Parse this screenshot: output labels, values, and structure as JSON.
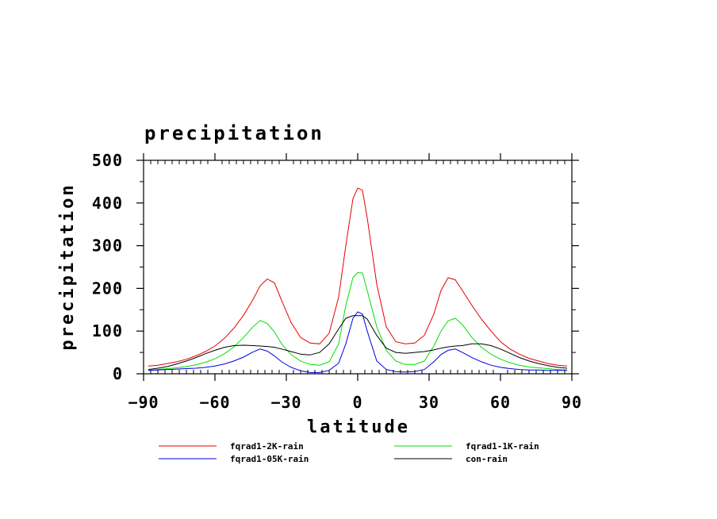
{
  "chart_data": {
    "type": "line",
    "title": "precipitation",
    "xlabel": "latitude",
    "ylabel": "precipitation",
    "xlim": [
      -90,
      90
    ],
    "ylim": [
      0,
      500
    ],
    "xticks": [
      -90,
      -60,
      -30,
      0,
      30,
      60,
      90
    ],
    "xtick_labels": [
      "−90",
      "−60",
      "−30",
      "0",
      "30",
      "60",
      "90"
    ],
    "yticks": [
      0,
      100,
      200,
      300,
      400,
      500
    ],
    "ytick_labels": [
      "0",
      "100",
      "200",
      "300",
      "400",
      "500"
    ],
    "grid": false,
    "legend_position": "bottom",
    "x": [
      -88,
      -84,
      -80,
      -76,
      -72,
      -68,
      -64,
      -60,
      -56,
      -52,
      -48,
      -44,
      -41,
      -38,
      -35,
      -32,
      -28,
      -24,
      -20,
      -16,
      -12,
      -8,
      -5,
      -2,
      0,
      2,
      4,
      8,
      12,
      16,
      20,
      24,
      28,
      32,
      35,
      38,
      41,
      44,
      48,
      52,
      56,
      60,
      64,
      68,
      72,
      76,
      80,
      84,
      88
    ],
    "series": [
      {
        "name": "fqrad1-2K-rain",
        "color": "#e60000",
        "values": [
          18,
          20,
          24,
          28,
          34,
          42,
          52,
          65,
          83,
          107,
          137,
          174,
          206,
          222,
          213,
          172,
          120,
          85,
          72,
          70,
          95,
          180,
          300,
          410,
          435,
          430,
          365,
          210,
          110,
          75,
          70,
          72,
          90,
          140,
          195,
          225,
          220,
          195,
          160,
          128,
          100,
          75,
          58,
          46,
          36,
          30,
          24,
          20,
          18
        ]
      },
      {
        "name": "fqrad1-1K-rain",
        "color": "#00e000",
        "values": [
          8,
          10,
          12,
          14,
          17,
          21,
          27,
          35,
          47,
          63,
          85,
          110,
          125,
          118,
          98,
          70,
          45,
          30,
          22,
          20,
          28,
          70,
          160,
          225,
          237,
          236,
          195,
          110,
          55,
          30,
          22,
          22,
          30,
          65,
          100,
          124,
          130,
          115,
          85,
          62,
          46,
          34,
          26,
          20,
          16,
          14,
          12,
          10,
          9
        ]
      },
      {
        "name": "fqrad1-05K-rain",
        "color": "#0000e0",
        "values": [
          8,
          9,
          10,
          11,
          12,
          13,
          15,
          18,
          23,
          30,
          39,
          51,
          58,
          53,
          42,
          28,
          15,
          7,
          3,
          3,
          8,
          25,
          70,
          130,
          145,
          140,
          100,
          30,
          10,
          5,
          4,
          5,
          10,
          28,
          45,
          55,
          58,
          50,
          38,
          28,
          20,
          15,
          12,
          10,
          9,
          9,
          8,
          8,
          8
        ]
      },
      {
        "name": "con-rain",
        "color": "#000000",
        "values": [
          10,
          13,
          17,
          23,
          30,
          38,
          47,
          55,
          62,
          66,
          67,
          66,
          65,
          64,
          62,
          58,
          52,
          46,
          44,
          50,
          70,
          105,
          130,
          136,
          136,
          136,
          128,
          90,
          60,
          50,
          48,
          50,
          52,
          56,
          60,
          63,
          65,
          66,
          70,
          70,
          66,
          58,
          48,
          38,
          30,
          24,
          19,
          15,
          13
        ]
      }
    ]
  }
}
